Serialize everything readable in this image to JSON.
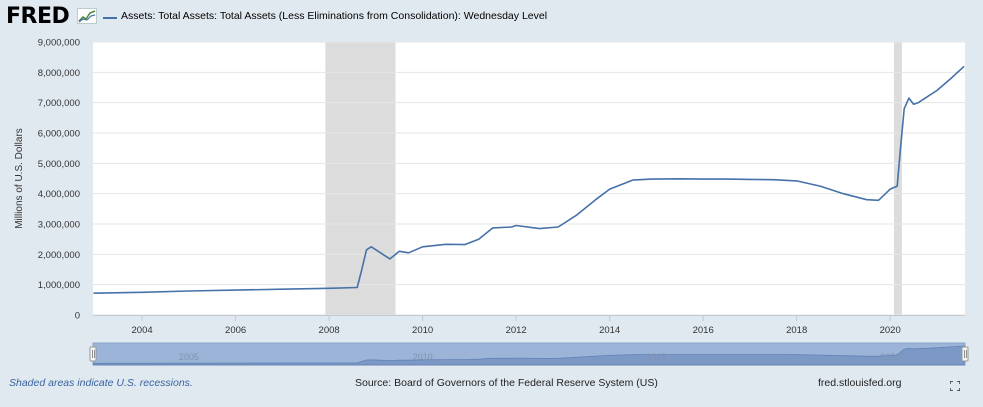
{
  "header": {
    "logo": "FRED",
    "series_label": "Assets: Total Assets: Total Assets (Less Eliminations from Consolidation): Wednesday Level"
  },
  "colors": {
    "series": "#4572a7",
    "recession": "#dcdcdc",
    "background": "#e1e9f0",
    "navigator": "#9cb4d8"
  },
  "chart_data": {
    "type": "line",
    "title": "",
    "xlabel": "",
    "ylabel": "Millions of U.S. Dollars",
    "ylim": [
      0,
      9000000
    ],
    "xlim": [
      2002.95,
      2021.6
    ],
    "y_ticks": [
      0,
      1000000,
      2000000,
      3000000,
      4000000,
      5000000,
      6000000,
      7000000,
      8000000,
      9000000
    ],
    "y_tick_labels": [
      "0",
      "1,000,000",
      "2,000,000",
      "3,000,000",
      "4,000,000",
      "5,000,000",
      "6,000,000",
      "7,000,000",
      "8,000,000",
      "9,000,000"
    ],
    "x_ticks": [
      2004,
      2006,
      2008,
      2010,
      2012,
      2014,
      2016,
      2018,
      2020
    ],
    "x_tick_labels": [
      "2004",
      "2006",
      "2008",
      "2010",
      "2012",
      "2014",
      "2016",
      "2018",
      "2020"
    ],
    "grid": "horizontal",
    "recessions": [
      [
        2007.92,
        2009.42
      ],
      [
        2020.08,
        2020.25
      ]
    ],
    "series": [
      {
        "name": "Assets: Total Assets: Total Assets (Less Eliminations from Consolidation): Wednesday Level",
        "x": [
          2002.96,
          2004.0,
          2005.0,
          2006.0,
          2007.0,
          2008.0,
          2008.6,
          2008.7,
          2008.8,
          2008.9,
          2009.0,
          2009.1,
          2009.3,
          2009.5,
          2009.7,
          2010.0,
          2010.5,
          2010.9,
          2011.2,
          2011.5,
          2011.9,
          2012.0,
          2012.5,
          2012.9,
          2013.3,
          2013.7,
          2014.0,
          2014.5,
          2014.9,
          2015.5,
          2016.0,
          2016.5,
          2017.0,
          2017.5,
          2018.0,
          2018.5,
          2019.0,
          2019.5,
          2019.75,
          2019.9,
          2020.0,
          2020.15,
          2020.22,
          2020.3,
          2020.4,
          2020.5,
          2020.6,
          2020.75,
          2021.0,
          2021.3,
          2021.58
        ],
        "y": [
          720000,
          750000,
          790000,
          820000,
          850000,
          880000,
          905000,
          1500000,
          2150000,
          2250000,
          2150000,
          2050000,
          1850000,
          2100000,
          2050000,
          2250000,
          2330000,
          2320000,
          2500000,
          2870000,
          2900000,
          2950000,
          2850000,
          2900000,
          3300000,
          3800000,
          4150000,
          4450000,
          4480000,
          4490000,
          4480000,
          4480000,
          4470000,
          4460000,
          4420000,
          4250000,
          4000000,
          3800000,
          3780000,
          4000000,
          4150000,
          4250000,
          5500000,
          6800000,
          7150000,
          6950000,
          7000000,
          7150000,
          7400000,
          7800000,
          8200000
        ]
      }
    ],
    "navigator": {
      "x_labels": [
        "2005",
        "2010",
        "2015",
        "2020"
      ],
      "x_label_values": [
        2005,
        2010,
        2015,
        2020
      ]
    }
  },
  "footer": {
    "note": "Shaded areas indicate U.S. recessions.",
    "source": "Source: Board of Governors of the Federal Reserve System (US)",
    "site": "fred.stlouisfed.org"
  }
}
